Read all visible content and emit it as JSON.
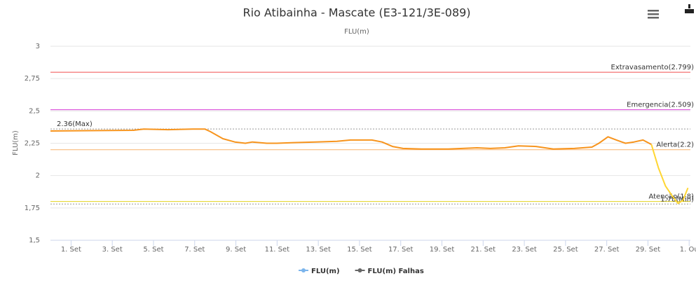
{
  "chart_data": {
    "type": "line",
    "title": "Rio Atibainha - Mascate (E3-121/3E-089)",
    "subtitle": "FLU(m)",
    "y_label": "FLU(m)",
    "xlim": [
      0,
      31.06
    ],
    "xticks": [
      {
        "value": 1,
        "label": "1. Set"
      },
      {
        "value": 3,
        "label": "3. Set"
      },
      {
        "value": 5,
        "label": "5. Set"
      },
      {
        "value": 7,
        "label": "7. Set"
      },
      {
        "value": 9,
        "label": "9. Set"
      },
      {
        "value": 11,
        "label": "11. Set"
      },
      {
        "value": 13,
        "label": "13. Set"
      },
      {
        "value": 15,
        "label": "15. Set"
      },
      {
        "value": 17,
        "label": "17. Set"
      },
      {
        "value": 19,
        "label": "19. Set"
      },
      {
        "value": 21,
        "label": "21. Set"
      },
      {
        "value": 23,
        "label": "23. Set"
      },
      {
        "value": 25,
        "label": "25. Set"
      },
      {
        "value": 27,
        "label": "27. Set"
      },
      {
        "value": 29,
        "label": "29. Set"
      },
      {
        "value": 31,
        "label": "1. Ou"
      }
    ],
    "ylim": [
      1.5,
      3
    ],
    "yticks": [
      {
        "value": 1.5,
        "label": "1,5"
      },
      {
        "value": 1.75,
        "label": "1,75"
      },
      2,
      {
        "value": 2.25,
        "label": "2,25"
      },
      {
        "value": 2.5,
        "label": "2,5"
      },
      {
        "value": 2.75,
        "label": "2,75"
      },
      3
    ],
    "grid": true,
    "plot_lines": [
      {
        "label": "Extravasamento(2.799)",
        "value": 2.799,
        "color": "#f04e4e",
        "dash": false,
        "align": "right"
      },
      {
        "label": "Emergencia(2.509)",
        "value": 2.509,
        "color": "#d63bd6",
        "dash": false,
        "align": "right"
      },
      {
        "label": "2.36(Max)",
        "value": 2.36,
        "color": "#999999",
        "dash": true,
        "align": "left"
      },
      {
        "label": "Alerta(2.2)",
        "value": 2.2,
        "color": "#f9b26b",
        "dash": false,
        "align": "right"
      },
      {
        "label": "Atenção(1.8)",
        "value": 1.8,
        "color": "#e3d21e",
        "dash": false,
        "align": "right"
      },
      {
        "label": "1.78(Min)",
        "value": 1.78,
        "color": "#999999",
        "dash": true,
        "align": "right"
      }
    ],
    "series": [
      {
        "color": "#f7941d",
        "x": [
          0,
          4.02,
          4.53,
          5.72,
          6.91,
          7.49,
          7.76,
          8.37,
          8.95,
          9.46,
          9.8,
          10.5,
          10.99,
          11.8,
          12.86,
          13.9,
          14.56,
          15.6,
          16.09,
          16.6,
          17.11,
          18.0,
          19.31,
          20.7,
          21.35,
          22.05,
          22.71,
          23.57,
          24.41,
          25.43,
          26.28,
          26.62,
          27.06,
          27.47,
          27.91,
          28.32,
          28.76,
          29.17
        ],
        "values": [
          2.345,
          2.35,
          2.36,
          2.355,
          2.36,
          2.36,
          2.34,
          2.285,
          2.26,
          2.25,
          2.26,
          2.25,
          2.25,
          2.255,
          2.26,
          2.265,
          2.275,
          2.275,
          2.26,
          2.225,
          2.21,
          2.205,
          2.205,
          2.215,
          2.21,
          2.215,
          2.23,
          2.225,
          2.205,
          2.21,
          2.22,
          2.25,
          2.3,
          2.275,
          2.25,
          2.26,
          2.275,
          2.24
        ]
      },
      {
        "color": "#ffd633",
        "x": [
          29.17,
          29.51,
          29.85,
          30.19,
          30.46,
          30.7,
          30.94
        ],
        "values": [
          2.24,
          2.06,
          1.92,
          1.84,
          1.785,
          1.81,
          1.905
        ]
      }
    ],
    "legend": [
      {
        "name": "FLU(m)",
        "color": "#7cb5ec"
      },
      {
        "name": "FLU(m) Falhas",
        "color": "#666666"
      }
    ]
  }
}
